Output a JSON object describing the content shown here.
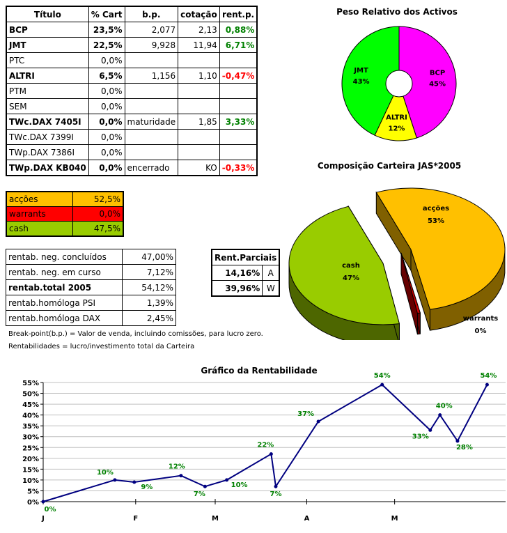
{
  "holdings": {
    "headers": [
      "Título",
      "% Cart",
      "b.p.",
      "cotação",
      "rent.p."
    ],
    "rows": [
      {
        "title": "BCP",
        "pct": "23,5%",
        "bp": "2,077",
        "quote": "2,13",
        "rent": "0,88%",
        "bold": true,
        "rent_sign": "pos"
      },
      {
        "title": "JMT",
        "pct": "22,5%",
        "bp": "9,928",
        "quote": "11,94",
        "rent": "6,71%",
        "bold": true,
        "rent_sign": "pos"
      },
      {
        "title": "PTC",
        "pct": "0,0%",
        "bp": "",
        "quote": "",
        "rent": "",
        "bold": false,
        "rent_sign": ""
      },
      {
        "title": "ALTRI",
        "pct": "6,5%",
        "bp": "1,156",
        "quote": "1,10",
        "rent": "-0,47%",
        "bold": true,
        "rent_sign": "neg"
      },
      {
        "title": "PTM",
        "pct": "0,0%",
        "bp": "",
        "quote": "",
        "rent": "",
        "bold": false,
        "rent_sign": ""
      },
      {
        "title": "SEM",
        "pct": "0,0%",
        "bp": "",
        "quote": "",
        "rent": "",
        "bold": false,
        "rent_sign": ""
      },
      {
        "title": "TWc.DAX 7405I",
        "pct": "0,0%",
        "bp": "maturidade",
        "quote": "1,85",
        "rent": "3,33%",
        "bold": true,
        "rent_sign": "pos"
      },
      {
        "title": "TWc.DAX 7399I",
        "pct": "0,0%",
        "bp": "",
        "quote": "",
        "rent": "",
        "bold": false,
        "rent_sign": ""
      },
      {
        "title": "TWp.DAX 7386I",
        "pct": "0,0%",
        "bp": "",
        "quote": "",
        "rent": "",
        "bold": false,
        "rent_sign": ""
      },
      {
        "title": "TWp.DAX KB040",
        "pct": "0,0%",
        "bp": "encerrado",
        "quote": "KO",
        "rent": "-0,33%",
        "bold": true,
        "rent_sign": "neg"
      }
    ]
  },
  "allocation": [
    {
      "label": "acções",
      "value": "52,5%",
      "color": "#ffc000"
    },
    {
      "label": "warrants",
      "value": "0,0%",
      "color": "#ff0000"
    },
    {
      "label": "cash",
      "value": "47,5%",
      "color": "#99cc00"
    }
  ],
  "returns": [
    {
      "label": "rentab. neg. concluídos",
      "value": "47,00%",
      "bold": false
    },
    {
      "label": "rentab. neg. em curso",
      "value": "7,12%",
      "bold": false
    },
    {
      "label": "rentab.total 2005",
      "value": "54,12%",
      "bold": true
    },
    {
      "label": "rentab.homóloga PSI",
      "value": "1,39%",
      "bold": false
    },
    {
      "label": "rentab.homóloga DAX",
      "value": "2,45%",
      "bold": false
    }
  ],
  "partials": {
    "header": "Rent.Parciais",
    "rows": [
      {
        "value": "14,16%",
        "key": "A"
      },
      {
        "value": "39,96%",
        "key": "W"
      }
    ]
  },
  "notes": {
    "breakpoint": "Break-point(b.p.) = Valor de venda, incluindo comissões, para lucro zero.",
    "rentabilidades": "Rentabilidades = lucro/investimento total da Carteira"
  },
  "chart_data": [
    {
      "type": "pie",
      "title": "Peso Relativo dos Activos",
      "labels": [
        "BCP",
        "ALTRI",
        "JMT"
      ],
      "values": [
        45,
        12,
        43
      ],
      "display": [
        "45%",
        "12%",
        "43%"
      ],
      "colors": [
        "#ff00ff",
        "#ffff00",
        "#00ff00"
      ]
    },
    {
      "type": "pie",
      "title": "Composição Carteira JAS*2005",
      "labels": [
        "acções",
        "warrants",
        "cash"
      ],
      "values": [
        53,
        0,
        47
      ],
      "display": [
        "53%",
        "0%",
        "47%"
      ],
      "colors": [
        "#ffc000",
        "#cc0000",
        "#99cc00"
      ]
    },
    {
      "type": "line",
      "title": "Gráfico da Rentabilidade",
      "x_ticks": [
        "J",
        "F",
        "M",
        "A",
        "M"
      ],
      "x": [
        0,
        1.55,
        1.97,
        2.98,
        3.5,
        3.97,
        4.93,
        5.03,
        5.95,
        7.33,
        8.37,
        8.58,
        8.96,
        9.6
      ],
      "values": [
        0,
        10,
        9,
        12,
        7,
        10,
        22,
        7,
        37,
        54,
        33,
        40,
        28,
        54
      ],
      "labels": [
        "0%",
        "10%",
        "9%",
        "12%",
        "7%",
        "10%",
        "22%",
        "7%",
        "37%",
        "54%",
        "33%",
        "40%",
        "28%",
        "54%"
      ],
      "xlim": [
        0,
        10
      ],
      "ylim": [
        0,
        55
      ],
      "y_ticks": [
        "0%",
        "5%",
        "10%",
        "15%",
        "20%",
        "25%",
        "30%",
        "35%",
        "40%",
        "45%",
        "50%",
        "55%"
      ],
      "line_color": "#000080",
      "label_color": "#008000"
    }
  ]
}
